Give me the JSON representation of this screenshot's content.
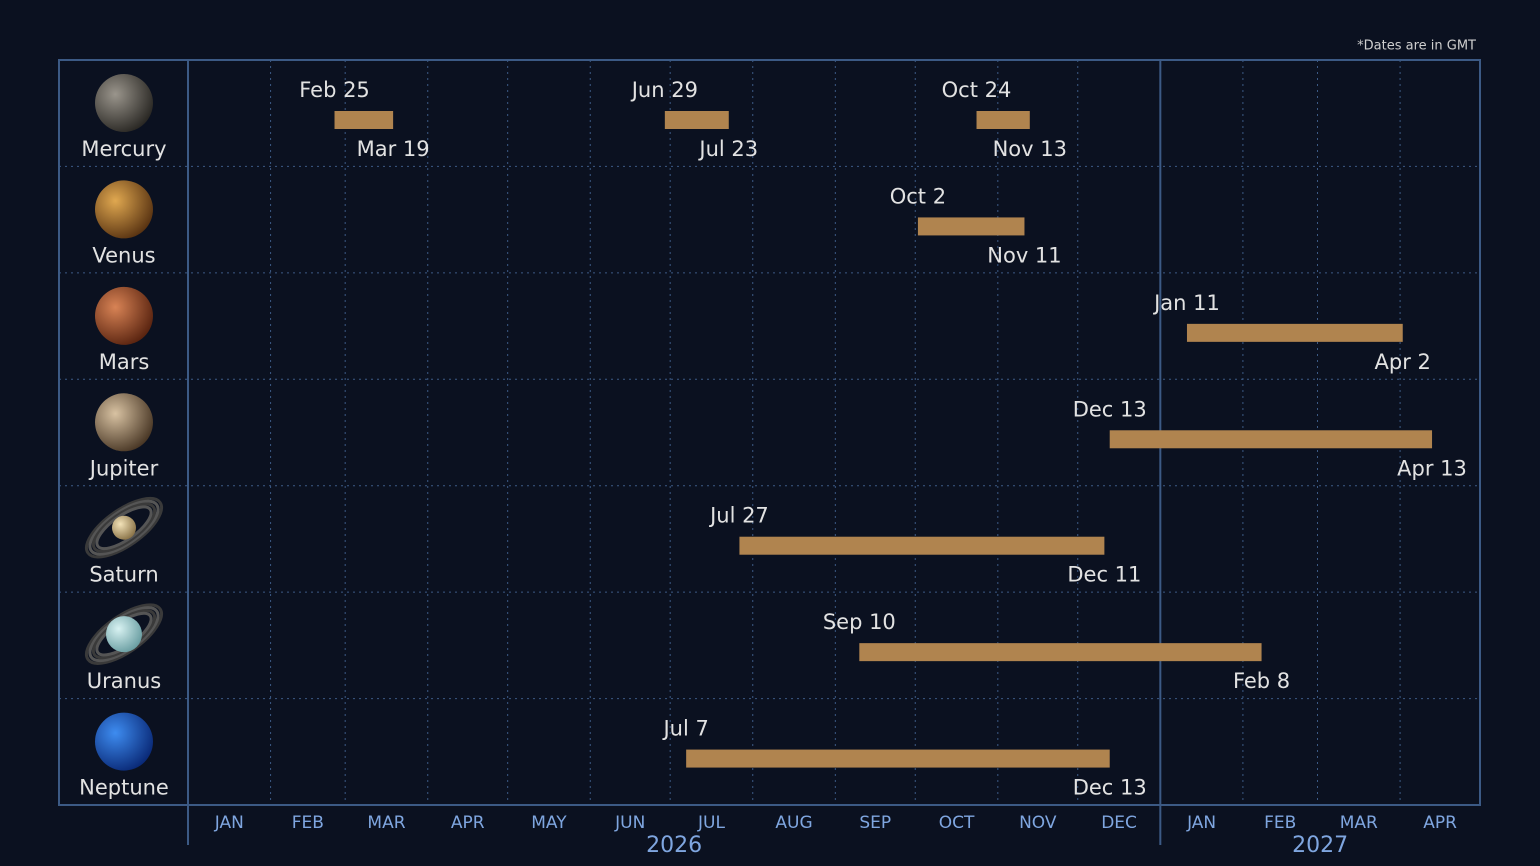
{
  "chart_data": {
    "type": "timeline",
    "note": "*Dates are in GMT",
    "xlim": [
      "2026-01-01",
      "2027-05-01"
    ],
    "xticks": [
      "2026-01-01",
      "2026-02-01",
      "2026-03-01",
      "2026-04-01",
      "2026-05-01",
      "2026-06-01",
      "2026-07-01",
      "2026-08-01",
      "2026-09-01",
      "2026-10-01",
      "2026-11-01",
      "2026-12-01",
      "2027-01-01",
      "2027-02-01",
      "2027-03-01",
      "2027-04-01",
      "2027-05-01"
    ],
    "groups": [
      {
        "label": "2026",
        "months": [
          "JAN",
          "FEB",
          "MAR",
          "APR",
          "MAY",
          "JUN",
          "JUL",
          "AUG",
          "SEP",
          "OCT",
          "NOV",
          "DEC"
        ]
      },
      {
        "label": "2027",
        "months": [
          "JAN",
          "FEB",
          "MAR",
          "APR"
        ]
      }
    ],
    "color": "#b0844f",
    "rows": [
      {
        "name": "Mercury",
        "periods": [
          {
            "start": "2026-02-25",
            "end": "2026-03-19",
            "start_label": "Feb 25",
            "end_label": "Mar 19"
          },
          {
            "start": "2026-06-29",
            "end": "2026-07-23",
            "start_label": "Jun 29",
            "end_label": "Jul 23"
          },
          {
            "start": "2026-10-24",
            "end": "2026-11-13",
            "start_label": "Oct 24",
            "end_label": "Nov 13"
          }
        ]
      },
      {
        "name": "Venus",
        "periods": [
          {
            "start": "2026-10-02",
            "end": "2026-11-11",
            "start_label": "Oct 2",
            "end_label": "Nov 11"
          }
        ]
      },
      {
        "name": "Mars",
        "periods": [
          {
            "start": "2027-01-11",
            "end": "2027-04-02",
            "start_label": "Jan 11",
            "end_label": "Apr 2"
          }
        ]
      },
      {
        "name": "Jupiter",
        "periods": [
          {
            "start": "2026-12-13",
            "end": "2027-04-13",
            "start_label": "Dec 13",
            "end_label": "Apr 13"
          }
        ]
      },
      {
        "name": "Saturn",
        "periods": [
          {
            "start": "2026-07-27",
            "end": "2026-12-11",
            "start_label": "Jul 27",
            "end_label": "Dec 11"
          }
        ]
      },
      {
        "name": "Uranus",
        "periods": [
          {
            "start": "2026-09-10",
            "end": "2027-02-08",
            "start_label": "Sep 10",
            "end_label": "Feb 8"
          }
        ]
      },
      {
        "name": "Neptune",
        "periods": [
          {
            "start": "2026-07-07",
            "end": "2026-12-13",
            "start_label": "Jul 7",
            "end_label": "Dec 13"
          }
        ]
      }
    ]
  }
}
